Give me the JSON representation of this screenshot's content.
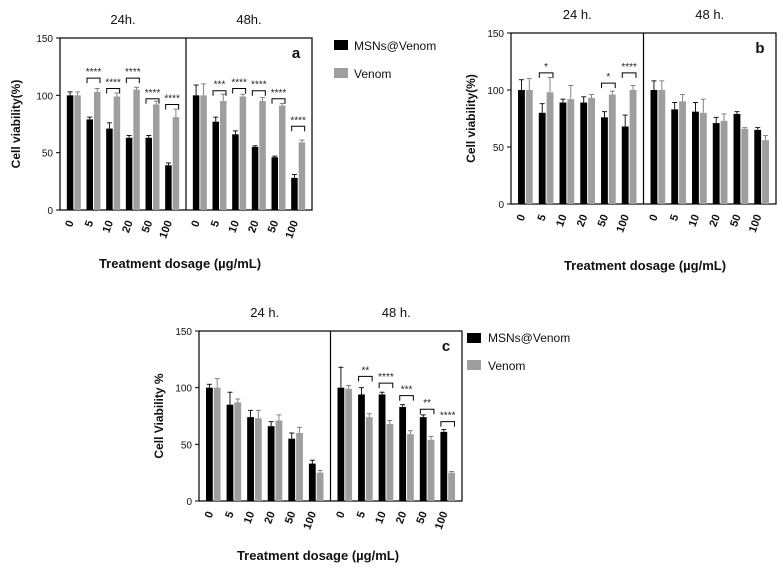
{
  "colors": {
    "black_series": "#000000",
    "grey_series": "#9e9e9e",
    "axis": "#000000"
  },
  "legend": [
    "MSNs@Venom",
    "Venom"
  ],
  "chart_data": [
    {
      "type": "bar",
      "panel": "a",
      "groups": [
        "24h.",
        "48h."
      ],
      "categories": [
        "0",
        "5",
        "10",
        "20",
        "50",
        "100"
      ],
      "xlabel": "Treatment dosage (µg/mL)",
      "ylabel": "Cell viability(%)",
      "ylim": [
        0,
        150
      ],
      "yticks": [
        0,
        50,
        100,
        150
      ],
      "series": [
        {
          "name": "MSNs@Venom",
          "values": [
            [
              100,
              79,
              71,
              63,
              63,
              39
            ],
            [
              100,
              77,
              66,
              55,
              46,
              28
            ]
          ],
          "errors": [
            [
              3,
              2,
              5,
              2,
              2,
              2
            ],
            [
              9,
              4,
              3,
              1,
              1,
              3
            ]
          ]
        },
        {
          "name": "Venom",
          "values": [
            [
              100,
              103,
              99,
              105,
              92,
              81
            ],
            [
              100,
              95,
              99,
              95,
              91,
              59
            ]
          ],
          "errors": [
            [
              3,
              3,
              3,
              2,
              3,
              7
            ],
            [
              10,
              6,
              2,
              3,
              2,
              2
            ]
          ]
        }
      ],
      "significance": [
        [
          {
            "cat": 1,
            "label": "****",
            "y": 115
          },
          {
            "cat": 2,
            "label": "****",
            "y": 106
          },
          {
            "cat": 3,
            "label": "****",
            "y": 115
          },
          {
            "cat": 4,
            "label": "****",
            "y": 97
          },
          {
            "cat": 5,
            "label": "****",
            "y": 92
          }
        ],
        [
          {
            "cat": 1,
            "label": "***",
            "y": 104
          },
          {
            "cat": 2,
            "label": "****",
            "y": 106
          },
          {
            "cat": 3,
            "label": "****",
            "y": 104
          },
          {
            "cat": 4,
            "label": "****",
            "y": 97
          },
          {
            "cat": 5,
            "label": "****",
            "y": 73
          }
        ]
      ]
    },
    {
      "type": "bar",
      "panel": "b",
      "groups": [
        "24 h.",
        "48 h."
      ],
      "categories": [
        "0",
        "5",
        "10",
        "20",
        "50",
        "100"
      ],
      "xlabel": "Treatment dosage (µg/mL)",
      "ylabel": "Cell viability(%)",
      "ylim": [
        0,
        150
      ],
      "yticks": [
        0,
        50,
        100,
        150
      ],
      "series": [
        {
          "name": "MSNs@Venom",
          "values": [
            [
              100,
              80,
              89,
              89,
              76,
              68
            ],
            [
              100,
              83,
              81,
              71,
              79,
              65
            ]
          ],
          "errors": [
            [
              9,
              8,
              3,
              5,
              5,
              10
            ],
            [
              8,
              6,
              8,
              5,
              2,
              2
            ]
          ]
        },
        {
          "name": "Venom",
          "values": [
            [
              100,
              98,
              92,
              93,
              96,
              100
            ],
            [
              100,
              90,
              80,
              73,
              66,
              56
            ]
          ],
          "errors": [
            [
              10,
              13,
              12,
              3,
              3,
              4
            ],
            [
              8,
              6,
              12,
              6,
              1,
              4
            ]
          ]
        }
      ],
      "significance": [
        [
          {
            "cat": 1,
            "label": "*",
            "y": 115
          },
          {
            "cat": 4,
            "label": "*",
            "y": 106
          },
          {
            "cat": 5,
            "label": "****",
            "y": 115
          }
        ],
        []
      ]
    },
    {
      "type": "bar",
      "panel": "c",
      "groups": [
        "24 h.",
        "48 h."
      ],
      "categories": [
        "0",
        "5",
        "10",
        "20",
        "50",
        "100"
      ],
      "xlabel": "Treatment dosage (µg/mL)",
      "ylabel": "Cell Viability %",
      "ylim": [
        0,
        150
      ],
      "yticks": [
        0,
        50,
        100,
        150
      ],
      "series": [
        {
          "name": "MSNs@Venom",
          "values": [
            [
              100,
              85,
              74,
              66,
              55,
              33
            ],
            [
              100,
              94,
              94,
              83,
              74,
              61
            ]
          ],
          "errors": [
            [
              3,
              11,
              6,
              4,
              5,
              3
            ],
            [
              18,
              6,
              2,
              2,
              2,
              2
            ]
          ]
        },
        {
          "name": "Venom",
          "values": [
            [
              100,
              87,
              73,
              71,
              60,
              25
            ],
            [
              99,
              74,
              68,
              59,
              54,
              25
            ]
          ],
          "errors": [
            [
              8,
              3,
              7,
              5,
              5,
              2
            ],
            [
              3,
              3,
              3,
              3,
              3,
              1
            ]
          ]
        }
      ],
      "significance": [
        [],
        [
          {
            "cat": 1,
            "label": "**",
            "y": 110
          },
          {
            "cat": 2,
            "label": "****",
            "y": 104
          },
          {
            "cat": 3,
            "label": "***",
            "y": 93
          },
          {
            "cat": 4,
            "label": "**",
            "y": 81
          },
          {
            "cat": 5,
            "label": "****",
            "y": 70
          }
        ]
      ]
    }
  ]
}
